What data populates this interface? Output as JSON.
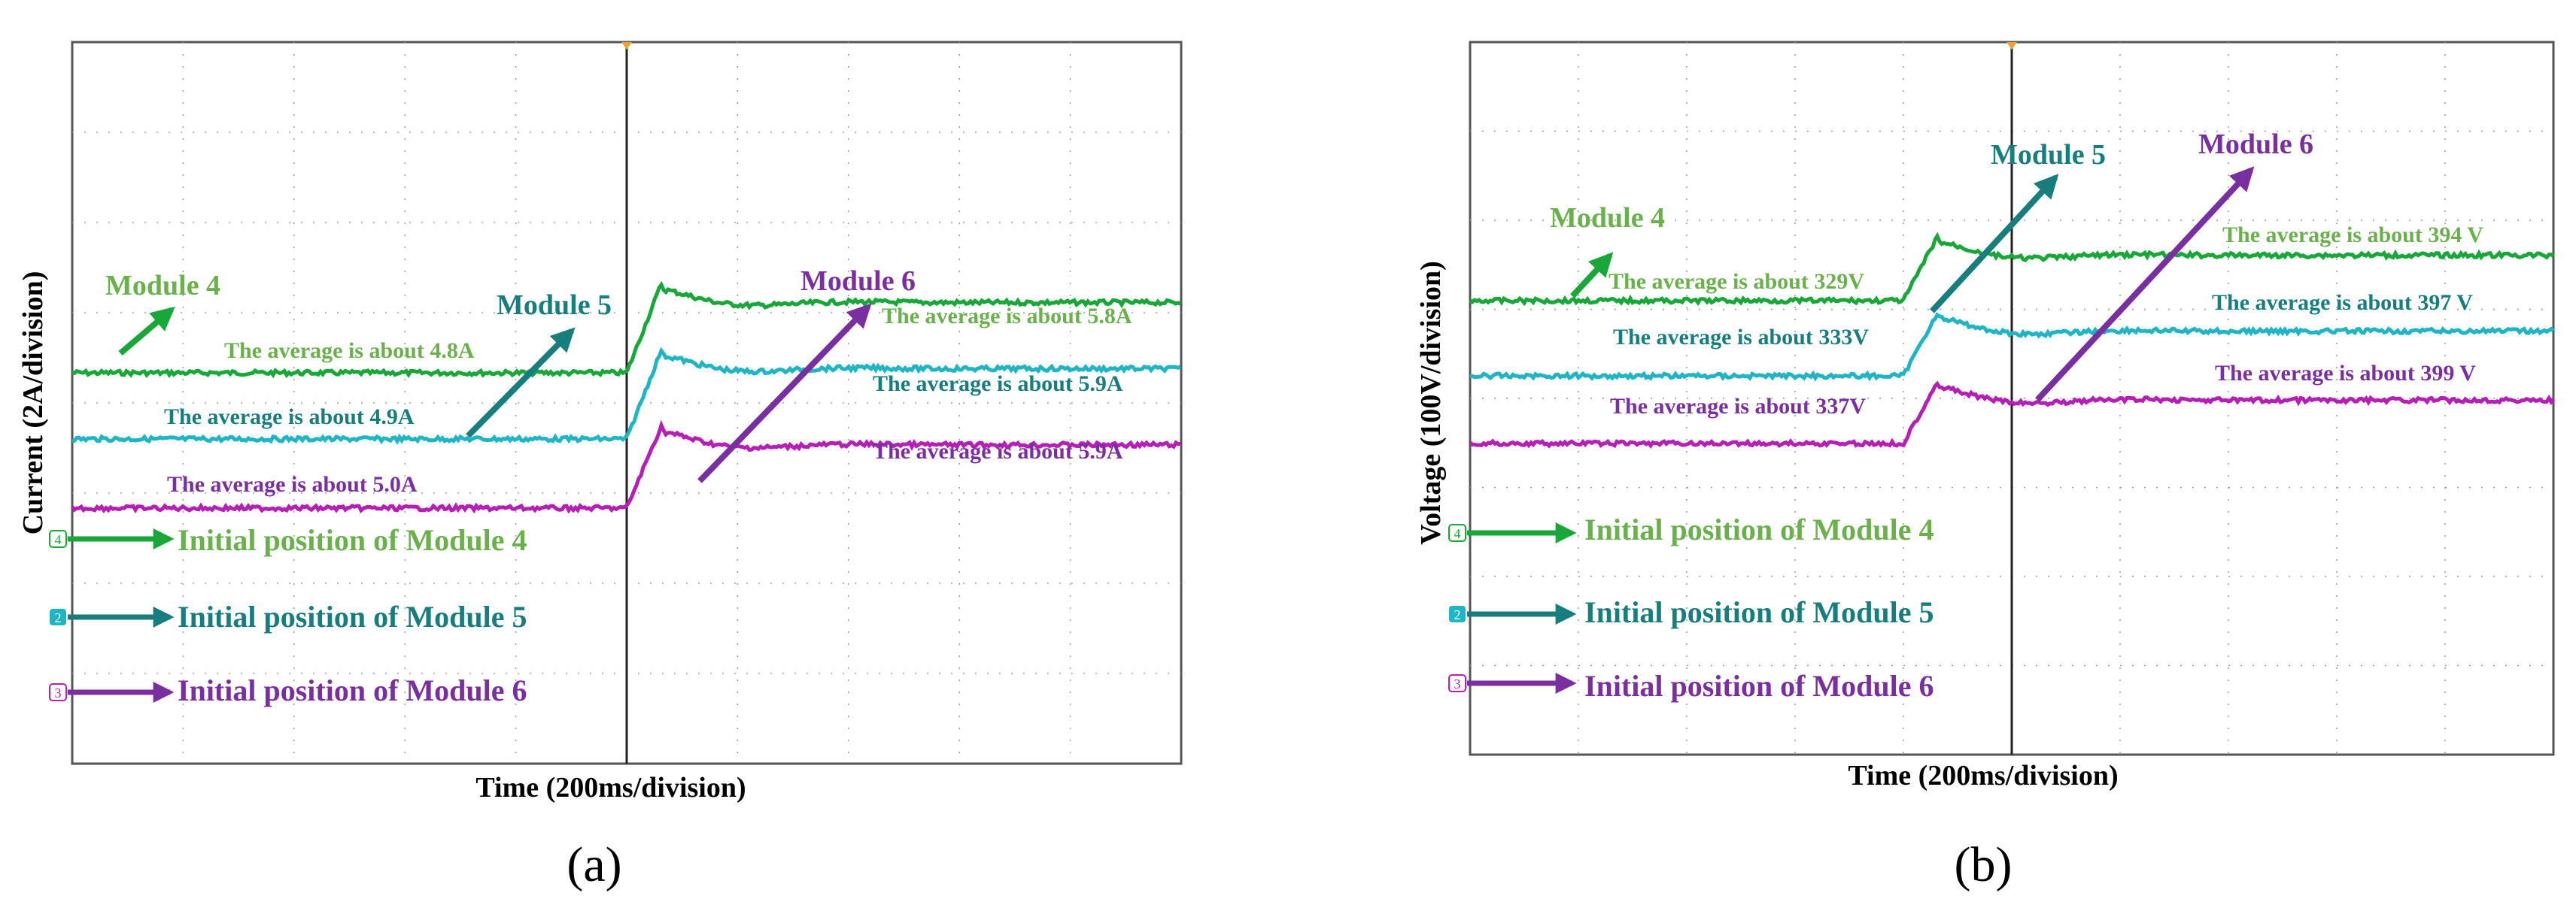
{
  "colors": {
    "module4_text": "#6ab04c",
    "module4_trace": "#1aa73a",
    "module5_text": "#177d7d",
    "module5_trace": "#1fb5c4",
    "module6_text": "#7a2fa0",
    "module6_trace": "#b51fb5",
    "marker_orange": "#e8a23a",
    "grid": "#9a9a9a",
    "frame": "#555555",
    "axis_text": "#000000"
  },
  "panels": [
    {
      "id": "a",
      "caption": "(a)",
      "xlabel": "Time (200ms/division)",
      "ylabel": "Current (2A/division)",
      "series": [
        {
          "name": "Module 4",
          "avg_label": "The average is about 4.8A",
          "marker": "4",
          "initial_label": "Initial position of Module 4"
        },
        {
          "name": "Module 5",
          "avg_label": "The average is about 4.9A",
          "marker": "2",
          "initial_label": "Initial position of Module 5"
        },
        {
          "name": "Module 6",
          "avg_label": "The average is about 5.0A",
          "marker": "3",
          "initial_label": "Initial position of Module 6"
        }
      ],
      "after_labels": [
        "The average is about 5.8A",
        "The average is about 5.9A",
        "The average is about 5.9A"
      ]
    },
    {
      "id": "b",
      "caption": "(b)",
      "xlabel": "Time (200ms/division)",
      "ylabel": "Voltage (100V/division)",
      "series": [
        {
          "name": "Module 4",
          "avg_label": "The average  is about 329V",
          "marker": "4",
          "initial_label": "Initial position of Module 4"
        },
        {
          "name": "Module 5",
          "avg_label": "The average is about 333V",
          "marker": "2",
          "initial_label": "Initial position of Module 5"
        },
        {
          "name": "Module 6",
          "avg_label": "The average is about 337V",
          "marker": "3",
          "initial_label": "Initial position of Module 6"
        }
      ],
      "after_labels": [
        "The average is about 394 V",
        "The average  is about 397 V",
        "The average  is about 399 V"
      ]
    }
  ],
  "chart_data": [
    {
      "type": "line",
      "title": "",
      "xlabel": "Time (200ms/division)",
      "ylabel": "Current (2A/division)",
      "x_unit": "ms",
      "xlim": [
        0,
        2000
      ],
      "step_time": 1000,
      "series": [
        {
          "name": "Module 4",
          "before": 4.8,
          "after": 5.8,
          "before_label": "The average is about 4.8A",
          "after_label": "The average is about 5.8A"
        },
        {
          "name": "Module 5",
          "before": 4.9,
          "after": 5.9,
          "before_label": "The average is about 4.9A",
          "after_label": "The average is about 5.9A"
        },
        {
          "name": "Module 6",
          "before": 5.0,
          "after": 5.9,
          "before_label": "The average is about 5.0A",
          "after_label": "The average is about 5.9A"
        }
      ],
      "grid": true
    },
    {
      "type": "line",
      "title": "",
      "xlabel": "Time (200ms/division)",
      "ylabel": "Voltage (100V/division)",
      "x_unit": "ms",
      "xlim": [
        0,
        2000
      ],
      "step_time": 800,
      "series": [
        {
          "name": "Module 4",
          "before": 329,
          "after": 394,
          "before_label": "The average  is about 329V",
          "after_label": "The average is about 394 V"
        },
        {
          "name": "Module 5",
          "before": 333,
          "after": 397,
          "before_label": "The average is about 333V",
          "after_label": "The average  is about 397 V"
        },
        {
          "name": "Module 6",
          "before": 337,
          "after": 399,
          "before_label": "The average is about 337V",
          "after_label": "The average  is about 399 V"
        }
      ],
      "grid": true
    }
  ]
}
